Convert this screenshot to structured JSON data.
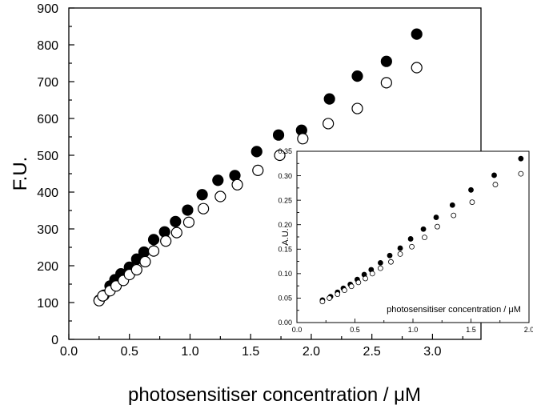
{
  "chart_data": [
    {
      "type": "scatter",
      "title": "",
      "xlabel": "photosensitiser concentration / μM",
      "ylabel": "F.U.",
      "xlim": [
        0,
        3.4
      ],
      "ylim": [
        0,
        900
      ],
      "xticks": [
        "0.0",
        "0.5",
        "1.0",
        "1.5",
        "2.0",
        "2.5",
        "3.0"
      ],
      "yticks": [
        "0",
        "100",
        "200",
        "300",
        "400",
        "500",
        "600",
        "700",
        "800",
        "900"
      ],
      "grid": false,
      "series": [
        {
          "marker": "filled-circle",
          "color": "#000000",
          "x": [
            0.25,
            0.29,
            0.34,
            0.38,
            0.43,
            0.5,
            0.56,
            0.62,
            0.7,
            0.79,
            0.88,
            0.98,
            1.1,
            1.23,
            1.37,
            1.55,
            1.73,
            1.92,
            2.15,
            2.38,
            2.62,
            2.87
          ],
          "y": [
            106,
            120,
            145,
            162,
            178,
            196,
            218,
            237,
            271,
            292,
            320,
            351,
            393,
            432,
            445,
            510,
            555,
            568,
            653,
            715,
            755,
            829
          ]
        },
        {
          "marker": "open-circle",
          "color": "#000000",
          "x": [
            0.25,
            0.28,
            0.34,
            0.39,
            0.45,
            0.5,
            0.56,
            0.63,
            0.7,
            0.8,
            0.89,
            0.99,
            1.11,
            1.25,
            1.39,
            1.56,
            1.74,
            1.93,
            2.14,
            2.38,
            2.62,
            2.87
          ],
          "y": [
            105,
            118,
            132,
            145,
            160,
            176,
            189,
            211,
            240,
            267,
            290,
            318,
            355,
            388,
            420,
            459,
            500,
            545,
            586,
            627,
            697,
            738
          ]
        }
      ]
    },
    {
      "type": "scatter",
      "title": "",
      "xlabel": "photosensitiser concentration / μM",
      "ylabel": "A.U.",
      "xlim": [
        0,
        2.0
      ],
      "ylim": [
        0,
        0.35
      ],
      "xticks": [
        "0.0",
        "0.5",
        "1.0",
        "1.5",
        "2.0"
      ],
      "yticks": [
        "0.00",
        "0.05",
        "0.10",
        "0.15",
        "0.20",
        "0.25",
        "0.30",
        "0.35"
      ],
      "grid": false,
      "series": [
        {
          "marker": "filled-circle",
          "color": "#000000",
          "x": [
            0.22,
            0.29,
            0.35,
            0.4,
            0.46,
            0.52,
            0.58,
            0.64,
            0.72,
            0.8,
            0.89,
            0.98,
            1.09,
            1.2,
            1.34,
            1.5,
            1.7,
            1.93
          ],
          "y": [
            0.046,
            0.053,
            0.062,
            0.07,
            0.078,
            0.088,
            0.098,
            0.108,
            0.122,
            0.137,
            0.152,
            0.171,
            0.191,
            0.215,
            0.24,
            0.271,
            0.301,
            0.335
          ]
        },
        {
          "marker": "open-circle",
          "color": "#000000",
          "x": [
            0.22,
            0.28,
            0.35,
            0.41,
            0.47,
            0.53,
            0.59,
            0.65,
            0.72,
            0.81,
            0.89,
            0.99,
            1.1,
            1.21,
            1.35,
            1.51,
            1.71,
            1.93
          ],
          "y": [
            0.043,
            0.05,
            0.058,
            0.066,
            0.074,
            0.082,
            0.09,
            0.1,
            0.111,
            0.124,
            0.14,
            0.155,
            0.174,
            0.196,
            0.219,
            0.246,
            0.282,
            0.304
          ]
        }
      ]
    }
  ]
}
